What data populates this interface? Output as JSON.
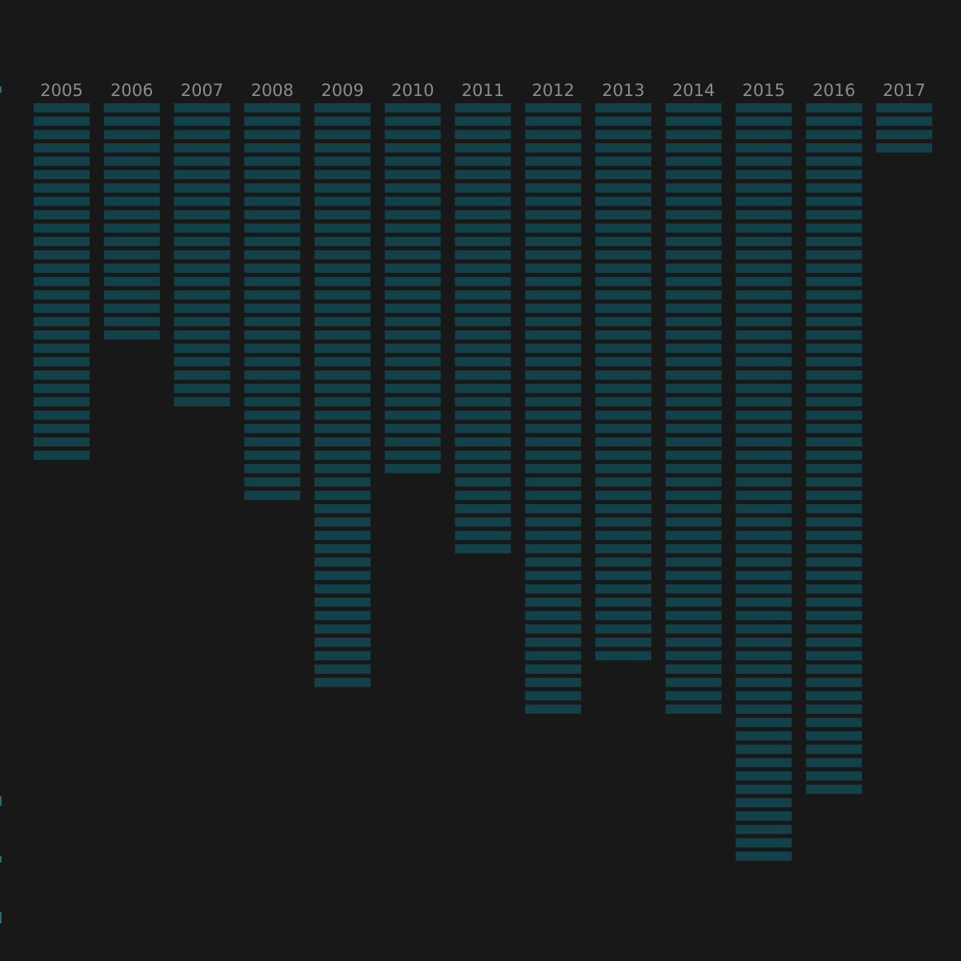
{
  "chart_data": {
    "type": "bar",
    "title": "",
    "xlabel": "",
    "ylabel": "",
    "categories": [
      "2005",
      "2006",
      "2007",
      "2008",
      "2009",
      "2010",
      "2011",
      "2012",
      "2013",
      "2014",
      "2015",
      "2016",
      "2017"
    ],
    "values": [
      27,
      18,
      23,
      30,
      44,
      28,
      34,
      46,
      42,
      46,
      57,
      52,
      4
    ],
    "orientation": "downward-stacked-blocks",
    "grid": false,
    "legend": "none",
    "colors": {
      "background": "#181818",
      "block": "#13414a",
      "label": "#8c8c8c"
    }
  }
}
